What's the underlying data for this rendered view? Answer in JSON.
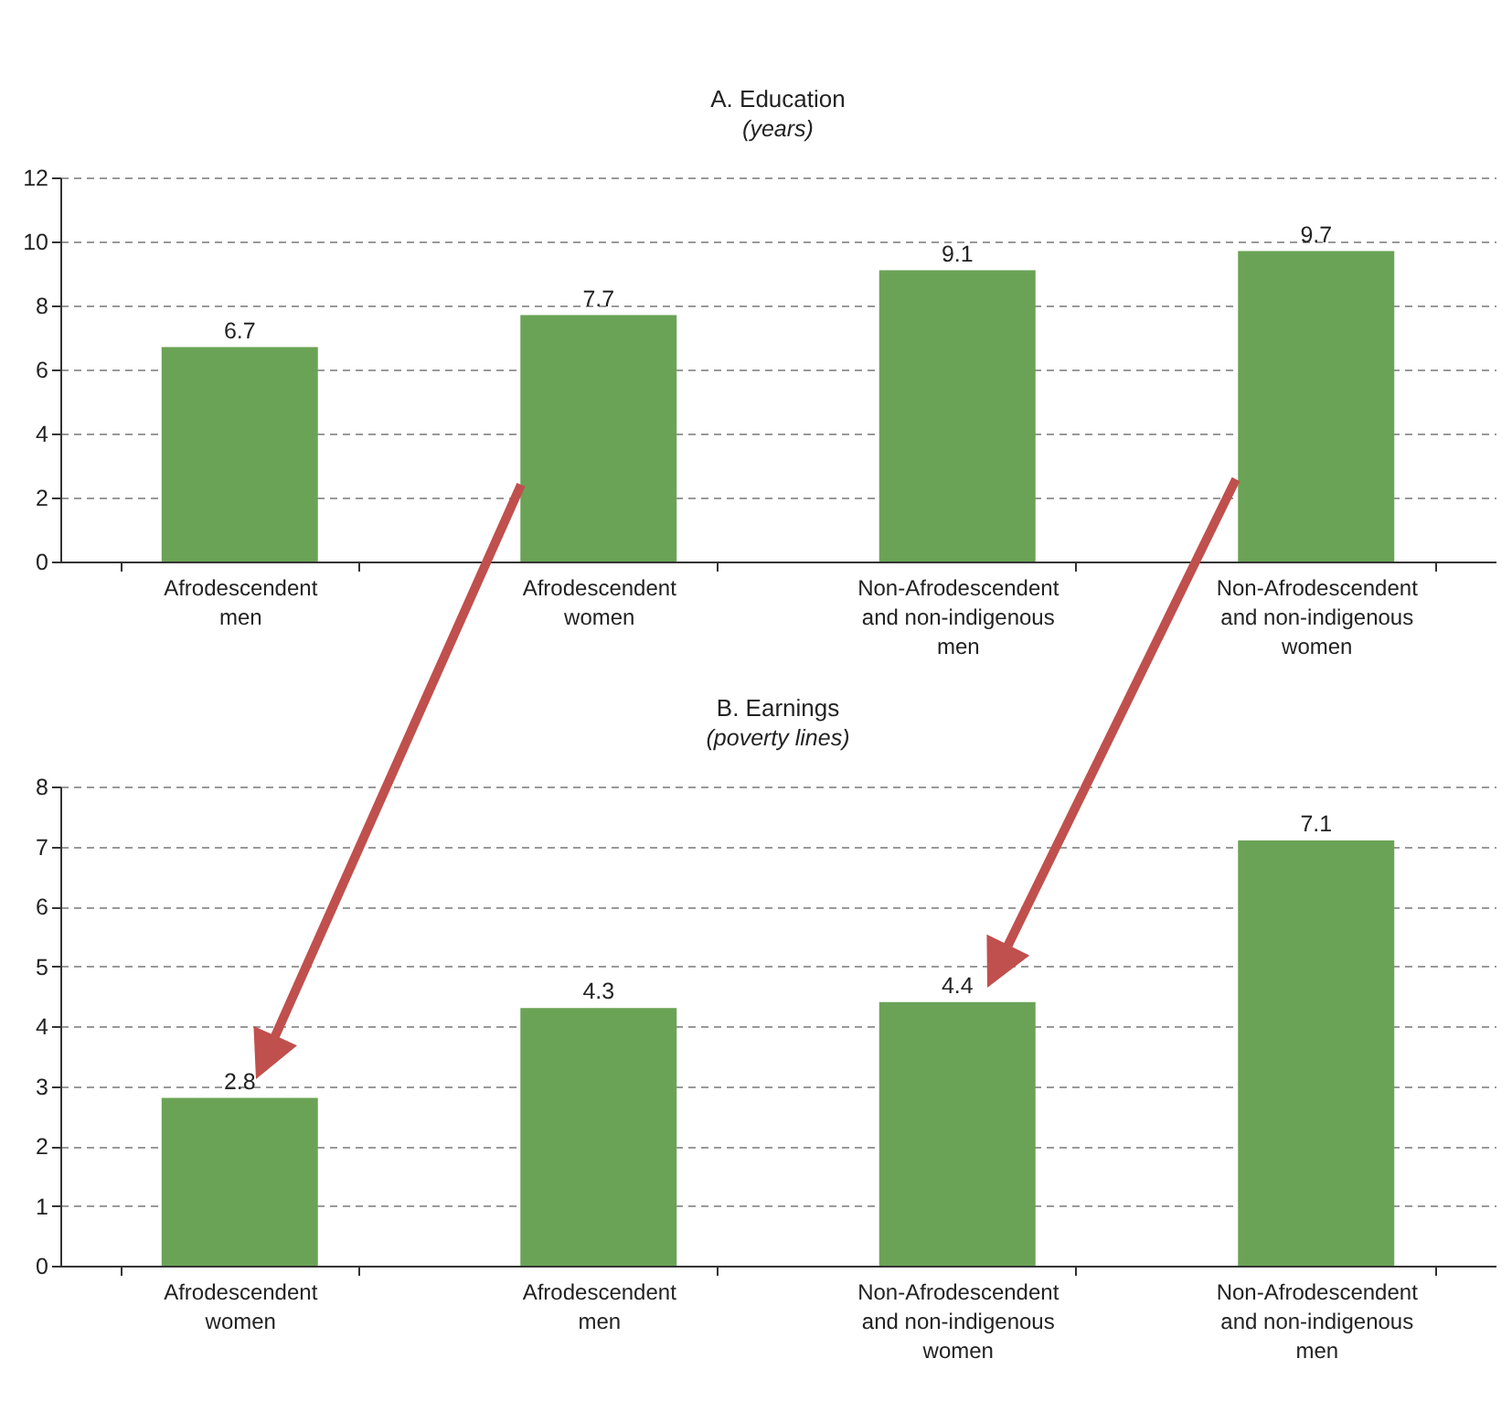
{
  "chart_data": [
    {
      "type": "bar",
      "title": "A. Education",
      "subtitle": "(years)",
      "categories": [
        "Afrodescendent men",
        "Afrodescendent women",
        "Non-Afrodescendent and non-indigenous men",
        "Non-Afrodescendent and non-indigenous women"
      ],
      "values": [
        6.7,
        7.7,
        9.1,
        9.7
      ],
      "color": "#6aa356",
      "ylim": [
        0,
        12
      ],
      "yticks": [
        0,
        2,
        4,
        6,
        8,
        10,
        12
      ],
      "grid": "y",
      "data_labels": true
    },
    {
      "type": "bar",
      "title": "B. Earnings",
      "subtitle": "(poverty lines)",
      "categories": [
        "Afrodescendent women",
        "Afrodescendent men",
        "Non-Afrodescendent and non-indigenous women",
        "Non-Afrodescendent and non-indigenous men"
      ],
      "values": [
        2.8,
        4.3,
        4.4,
        7.1
      ],
      "color": "#6aa356",
      "ylim": [
        0,
        8
      ],
      "yticks": [
        0,
        1,
        2,
        3,
        4,
        5,
        6,
        7,
        8
      ],
      "grid": "y",
      "data_labels": true
    }
  ]
}
